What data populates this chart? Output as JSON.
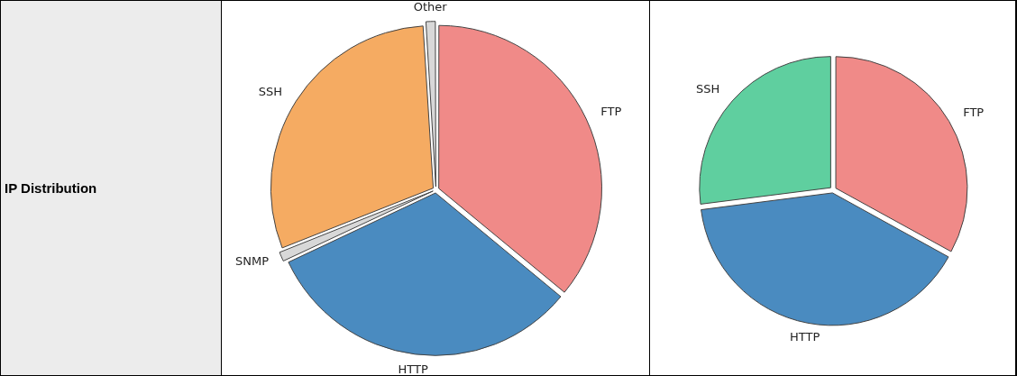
{
  "chart_data": [
    {
      "type": "other",
      "title": "IP Distribution"
    },
    {
      "type": "pie",
      "categories": [
        "FTP",
        "HTTP",
        "SNMP",
        "SSH",
        "Other"
      ],
      "values": [
        36,
        32,
        1,
        30,
        1
      ],
      "colors": [
        "#f08a88",
        "#4a8bc0",
        "#d8d8d8",
        "#f5ab62",
        "#d8d8d8"
      ],
      "legend": false
    },
    {
      "type": "pie",
      "categories": [
        "FTP",
        "HTTP",
        "SSH"
      ],
      "values": [
        33,
        40,
        27
      ],
      "colors": [
        "#f08a88",
        "#4a8bc0",
        "#5fcf9f"
      ],
      "legend": false
    }
  ]
}
